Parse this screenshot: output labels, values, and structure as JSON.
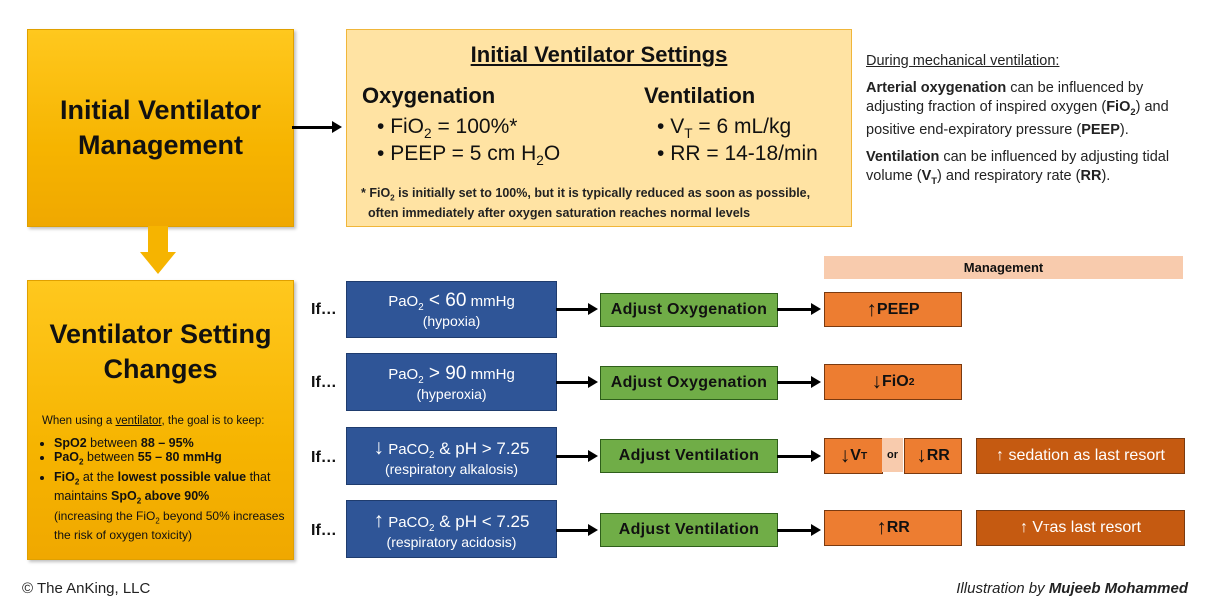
{
  "top_left_title": "Initial Ventilator Management",
  "settings": {
    "title": "Initial Ventilator Settings",
    "oxygenation_heading": "Oxygenation",
    "ventilation_heading": "Ventilation",
    "fio2_name": "FiO",
    "fio2_sub": "2",
    "fio2_value": " = 100%*",
    "peep_text": "PEEP =  5 cm H",
    "peep_sub": "2",
    "peep_end": "O",
    "vt_name": "V",
    "vt_sub": "T",
    "vt_value": " = 6 mL/kg",
    "rr_text": "RR = 14-18/min",
    "footnote_a": "* FiO",
    "footnote_sub": "2",
    "footnote_b": " is initially set to 100%,  but it is typically reduced as soon  as possible,",
    "footnote_c": "often  immediately after oxygen saturation reaches normal levels"
  },
  "side_note": {
    "heading": "During mechanical ventilation:",
    "p1_bold": "Arterial oxygenation",
    "p1_a": " can be influenced  by adjusting fraction of inspired oxygen (",
    "p1_fio": "FiO",
    "p1_fio_sub": "2",
    "p1_b": ") and positive end-expiratory  pressure (",
    "p1_peep": "PEEP",
    "p1_c": ").",
    "p2_bold": "Ventilation",
    "p2_a": " can be influenced  by adjusting tidal volume (",
    "p2_vt": "V",
    "p2_vt_sub": "T",
    "p2_b": ") and respiratory rate (",
    "p2_rr": "RR",
    "p2_c": ")."
  },
  "changes": {
    "title": "Ventilator Setting Changes",
    "goal_a": "When using a ",
    "goal_link": "ventilator",
    "goal_b": ", the goal is to keep:",
    "b1_bold1": "SpO2",
    "b1_mid": " between ",
    "b1_bold2": "88 – 95%",
    "b2_bold1": "PaO",
    "b2_sub": "2",
    "b2_mid": " between ",
    "b2_bold2": "55 – 80 mmHg",
    "b3_bold1": "FiO",
    "b3_sub": "2",
    "b3_mid": " at the ",
    "b3_bold2": "lowest possible value",
    "b3_c": " that maintains ",
    "b3_bold3": "SpO",
    "b3_sub2": "2",
    "b3_bold4": " above 90%",
    "b3_d": "(increasing the FiO",
    "b3_sub3": "2",
    "b3_e": " beyond 50% increases the risk of oxygen toxicity)"
  },
  "management_header": "Management",
  "rows": [
    {
      "if": "If…",
      "arrow": "",
      "cond_pre": "PaO",
      "cond_sub": "2",
      "cond_op": " < 60",
      "cond_unit": " mmHg",
      "cond_ph": "",
      "cond_note": "(hypoxia)",
      "action": "Adjust  Oxygenation",
      "m1_arrow": "↑",
      "m1_text": " PEEP",
      "m1_sub": ""
    },
    {
      "if": "If…",
      "arrow": "",
      "cond_pre": "PaO",
      "cond_sub": "2",
      "cond_op": " > 90",
      "cond_unit": " mmHg",
      "cond_ph": "",
      "cond_note": "(hyperoxia)",
      "action": "Adjust  Oxygenation",
      "m1_arrow": "↓",
      "m1_text": " FiO",
      "m1_sub": "2"
    },
    {
      "if": "If…",
      "arrow": "↓",
      "cond_pre": " PaCO",
      "cond_sub": "2",
      "cond_op": "",
      "cond_unit": "",
      "cond_ph": " & pH > 7.25",
      "cond_note": "(respiratory alkalosis)",
      "action": "Adjust  Ventilation",
      "m1_arrow": "↓",
      "m1_text": " V",
      "m1_sub": "T",
      "or": "or",
      "m2_arrow": "↓",
      "m2_text": " RR",
      "last": "↑ sedation  as last resort"
    },
    {
      "if": "If…",
      "arrow": "↑",
      "cond_pre": " PaCO",
      "cond_sub": "2",
      "cond_op": "",
      "cond_unit": "",
      "cond_ph": " & pH < 7.25",
      "cond_note": "(respiratory acidosis)",
      "action": "Adjust  Ventilation",
      "m1_arrow": "↑",
      "m1_text": " RR",
      "m1_sub": "",
      "last_a": "↑ V",
      "last_sub": "T",
      "last_b": " as last  resort"
    }
  ],
  "copyright": "© The AnKing, LLC",
  "credit_a": "Illustration by ",
  "credit_b": "Mujeeb Mohammed"
}
